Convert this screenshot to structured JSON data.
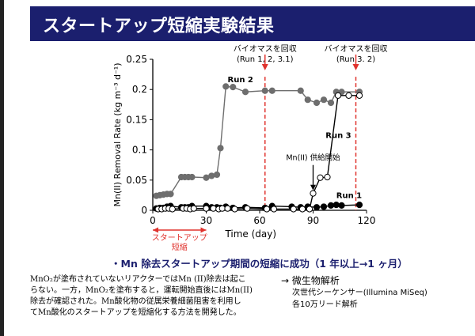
{
  "slide": {
    "title": "スタートアップ短縮実験結果",
    "headline": "・Mn 除去スタートアップ期間の短縮に成功（1 年以上→1 ヶ月）",
    "description": [
      "MnO₂が塗布されていないリアクターではMn (II)除去は起こ",
      "らない。一方，MnO₂を塗布すると，運転開始直後にはMn(II)",
      "除去が確認された。Mn酸化物の従属栄養細菌阻害を利用し",
      "てMn酸化のスタートアップを短縮化する方法を開発した。"
    ],
    "right_title": "→ 微生物解析",
    "right_lines": [
      "次世代シーケンサー(Illumina MiSeq)",
      "各10万リード解析"
    ]
  },
  "chart_data": {
    "type": "line",
    "xlabel": "Time (day)",
    "ylabel": "Mn(II) Removal Rate (kg m⁻³ d⁻¹)",
    "xlim": [
      0,
      120
    ],
    "ylim": [
      0,
      0.25
    ],
    "xticks": [
      0,
      30,
      60,
      90,
      120
    ],
    "yticks": [
      0,
      0.05,
      0.1,
      0.15,
      0.2,
      0.25
    ],
    "series": [
      {
        "name": "Run 2",
        "color": "#6e6e6e",
        "marker": "filled",
        "x": [
          2,
          4,
          6,
          8,
          10,
          16,
          18,
          20,
          22,
          30,
          33,
          36,
          38,
          41,
          45,
          52,
          63,
          67,
          83,
          87,
          92,
          96,
          100,
          103,
          106,
          116
        ],
        "y": [
          0.024,
          0.025,
          0.026,
          0.027,
          0.027,
          0.055,
          0.055,
          0.055,
          0.055,
          0.054,
          0.057,
          0.059,
          0.103,
          0.205,
          0.204,
          0.196,
          0.198,
          0.198,
          0.198,
          0.183,
          0.178,
          0.183,
          0.178,
          0.196,
          0.196,
          0.196
        ]
      },
      {
        "name": "Run 1",
        "color": "#000000",
        "marker": "filled",
        "x": [
          2,
          4,
          6,
          8,
          10,
          16,
          18,
          20,
          22,
          30,
          33,
          36,
          38,
          41,
          45,
          52,
          63,
          67,
          78,
          83,
          87,
          92,
          96,
          100,
          103,
          106,
          116
        ],
        "y": [
          0.003,
          0.004,
          0.004,
          0.006,
          0.007,
          0.005,
          0.005,
          0.005,
          0.007,
          0.007,
          0.005,
          0.005,
          0.004,
          0.006,
          0.004,
          0.005,
          0.004,
          0.007,
          0.006,
          0.005,
          0.006,
          0.005,
          0.006,
          0.008,
          0.009,
          0.008,
          0.009
        ]
      },
      {
        "name": "Run 3",
        "color": "#000000",
        "marker": "open",
        "x": [
          3,
          5,
          7,
          9,
          11,
          17,
          19,
          21,
          23,
          30,
          34,
          37,
          39,
          42,
          46,
          53,
          64,
          68,
          79,
          84,
          88,
          90,
          94,
          98,
          104,
          110,
          116
        ],
        "y": [
          0.002,
          0.002,
          0.003,
          0.003,
          0.002,
          0.003,
          0.003,
          0.002,
          0.003,
          0.003,
          0.003,
          0.002,
          0.003,
          0.003,
          0.002,
          0.003,
          0.002,
          0.002,
          0.002,
          0.002,
          0.002,
          0.028,
          0.054,
          0.055,
          0.19,
          0.19,
          0.19
        ]
      }
    ],
    "series_labels": [
      {
        "text": "Run 2",
        "x": 42,
        "y": 0.212
      },
      {
        "text": "Run 3",
        "x": 97,
        "y": 0.12
      },
      {
        "text": "Run 1",
        "x": 103,
        "y": 0.02
      }
    ],
    "annotations": [
      {
        "lines": [
          "バイオマスを回収",
          "(Run 1, 2, 3.1)"
        ],
        "x": 63,
        "y_top": 0.2315,
        "color": "#e0332e"
      },
      {
        "lines": [
          "バイオマスを回収",
          "(Run 3. 2)"
        ],
        "x": 114,
        "y_top": 0.2315,
        "color": "#e0332e"
      },
      {
        "lines": [
          "Mn(II) 供給開始"
        ],
        "x": 90,
        "arrow_from_y": 0.075,
        "arrow_to_y": 0.033,
        "color": "#000000"
      }
    ],
    "bracket": {
      "lines": [
        "スタートアップ",
        "短縮"
      ],
      "x_start": 0,
      "x_end": 30,
      "color": "#e0332e"
    },
    "colors": {
      "accent_red": "#e0332e",
      "title_bar": "#1b1f6e"
    }
  }
}
